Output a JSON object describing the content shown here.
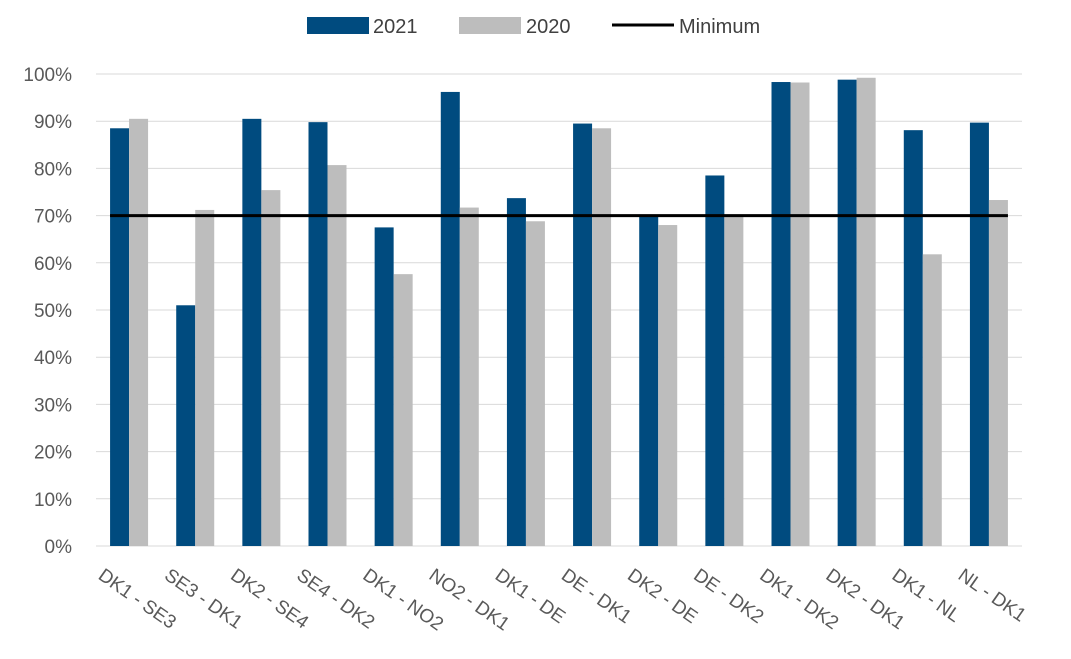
{
  "colors": {
    "series_2021": "#004b7f",
    "series_2020": "#bdbdbd",
    "minimum": "#000000",
    "grid": "#d9d9d9",
    "axis_text": "#595959"
  },
  "chart_data": {
    "type": "bar",
    "title": "",
    "xlabel": "",
    "ylabel": "",
    "ylim": [
      0,
      100
    ],
    "y_ticks": [
      "0%",
      "10%",
      "20%",
      "30%",
      "40%",
      "50%",
      "60%",
      "70%",
      "80%",
      "90%",
      "100%"
    ],
    "grid": true,
    "legend_position": "top",
    "categories": [
      "DK1 - SE3",
      "SE3 - DK1",
      "DK2 - SE4",
      "SE4 - DK2",
      "DK1 - NO2",
      "NO2 - DK1",
      "DK1 - DE",
      "DE - DK1",
      "DK2 - DE",
      "DE - DK2",
      "DK1 - DK2",
      "DK2 - DK1",
      "DK1 - NL",
      "NL - DK1"
    ],
    "series": [
      {
        "name": "2021",
        "values": [
          88.5,
          51,
          90.5,
          89.8,
          67.5,
          96.2,
          73.7,
          89.5,
          69.8,
          78.5,
          98.3,
          98.8,
          88.1,
          89.7
        ]
      },
      {
        "name": "2020",
        "values": [
          90.5,
          71.2,
          75.4,
          80.7,
          57.6,
          71.7,
          68.8,
          88.5,
          68,
          69.7,
          98.2,
          99.2,
          61.8,
          73.3
        ]
      }
    ],
    "reference_line": {
      "name": "Minimum",
      "value": 70
    }
  }
}
